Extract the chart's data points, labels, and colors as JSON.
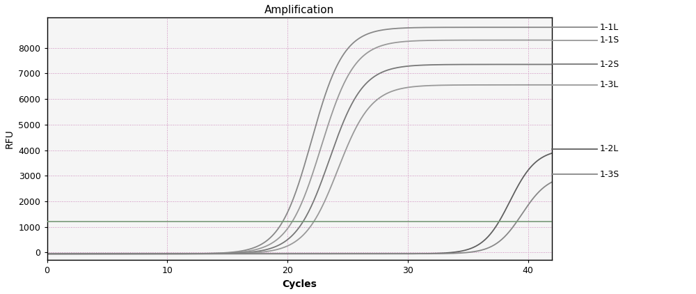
{
  "title": "Amplification",
  "xlabel": "Cycles",
  "ylabel": "RFU",
  "xlim": [
    0,
    42
  ],
  "ylim": [
    -300,
    9200
  ],
  "xticks": [
    0,
    10,
    20,
    30,
    40
  ],
  "yticks": [
    0,
    1000,
    2000,
    3000,
    4000,
    5000,
    6000,
    7000,
    8000
  ],
  "background_color": "#ffffff",
  "plot_bg_color": "#f5f5f5",
  "grid_color_h": "#cc88bb",
  "grid_color_v": "#cc88bb",
  "threshold_y": 1200,
  "threshold_color": "#888888",
  "curves": [
    {
      "label": "1-1L",
      "color": "#888888",
      "midpoint": 22.0,
      "plateau": 8800,
      "steepness": 0.75,
      "baseline": -50
    },
    {
      "label": "1-1S",
      "color": "#999999",
      "midpoint": 22.8,
      "plateau": 8300,
      "steepness": 0.72,
      "baseline": -50
    },
    {
      "label": "1-2S",
      "color": "#777777",
      "midpoint": 23.5,
      "plateau": 7350,
      "steepness": 0.72,
      "baseline": -50
    },
    {
      "label": "1-3L",
      "color": "#999999",
      "midpoint": 24.2,
      "plateau": 6550,
      "steepness": 0.72,
      "baseline": -50
    },
    {
      "label": "1-2L",
      "color": "#606060",
      "midpoint": 38.5,
      "plateau": 4050,
      "steepness": 0.9,
      "baseline": -50
    },
    {
      "label": "1-3S",
      "color": "#888888",
      "midpoint": 39.5,
      "plateau": 3050,
      "steepness": 0.9,
      "baseline": -50
    }
  ],
  "legend_labels": [
    "1-1L",
    "1-1S",
    "1-2S",
    "1-3L",
    "1-2L",
    "1-3S"
  ],
  "legend_plateau_values": [
    8800,
    8300,
    7350,
    6550,
    4050,
    3050
  ],
  "legend_colors": [
    "#888888",
    "#999999",
    "#777777",
    "#999999",
    "#606060",
    "#888888"
  ],
  "vlines": [
    10,
    20,
    30,
    40
  ],
  "title_fontsize": 11,
  "axis_label_fontsize": 10,
  "tick_fontsize": 9,
  "figsize": [
    10.0,
    4.22
  ],
  "dpi": 100
}
